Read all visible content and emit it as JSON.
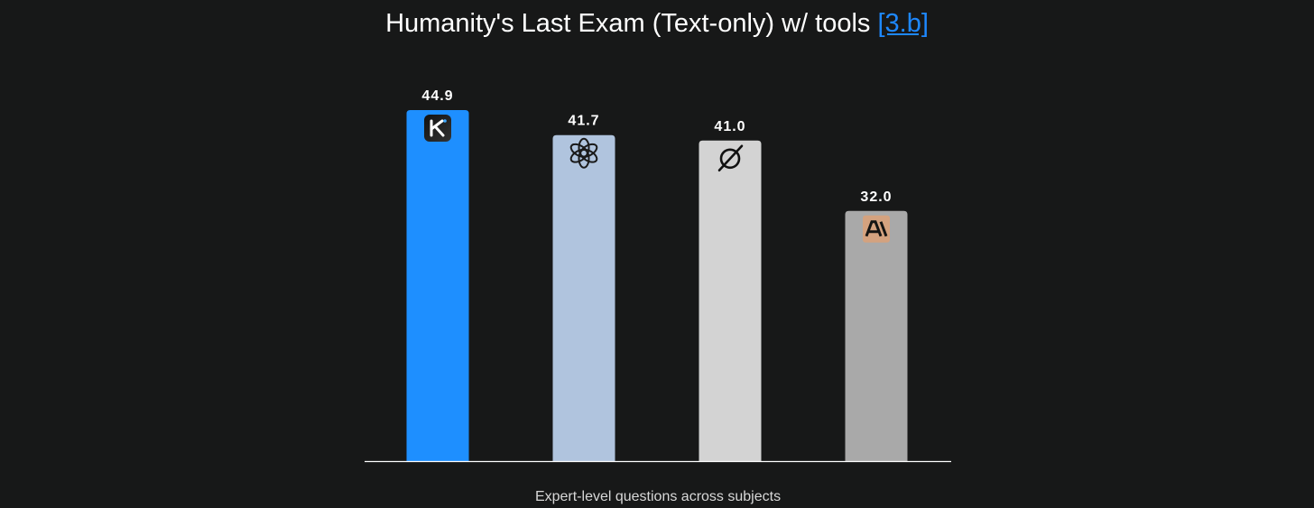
{
  "title": {
    "text": "Humanity's Last Exam (Text-only) w/ tools",
    "link": "[3.b]"
  },
  "colors": {
    "background": "#171818",
    "link": "#1e88ff",
    "axis": "#ffffff"
  },
  "chart_data": {
    "type": "bar",
    "categories": [
      "Kimi",
      "OpenAI",
      "xAI Grok",
      "Anthropic"
    ],
    "values": [
      44.9,
      41.7,
      41.0,
      32.0
    ],
    "value_labels": [
      "44.9",
      "41.7",
      "41.0",
      "32.0"
    ],
    "bar_colors": [
      "#1e8fff",
      "#b0c4de",
      "#d3d3d3",
      "#a9a9a9"
    ],
    "bar_icons": [
      "kimi-logo-icon",
      "openai-logo-icon",
      "grok-logo-icon",
      "anthropic-logo-icon"
    ],
    "xlabel": "Expert-level questions across subjects",
    "ylabel": "",
    "ylim": [
      0,
      48
    ],
    "grid": false,
    "legend": "none"
  }
}
